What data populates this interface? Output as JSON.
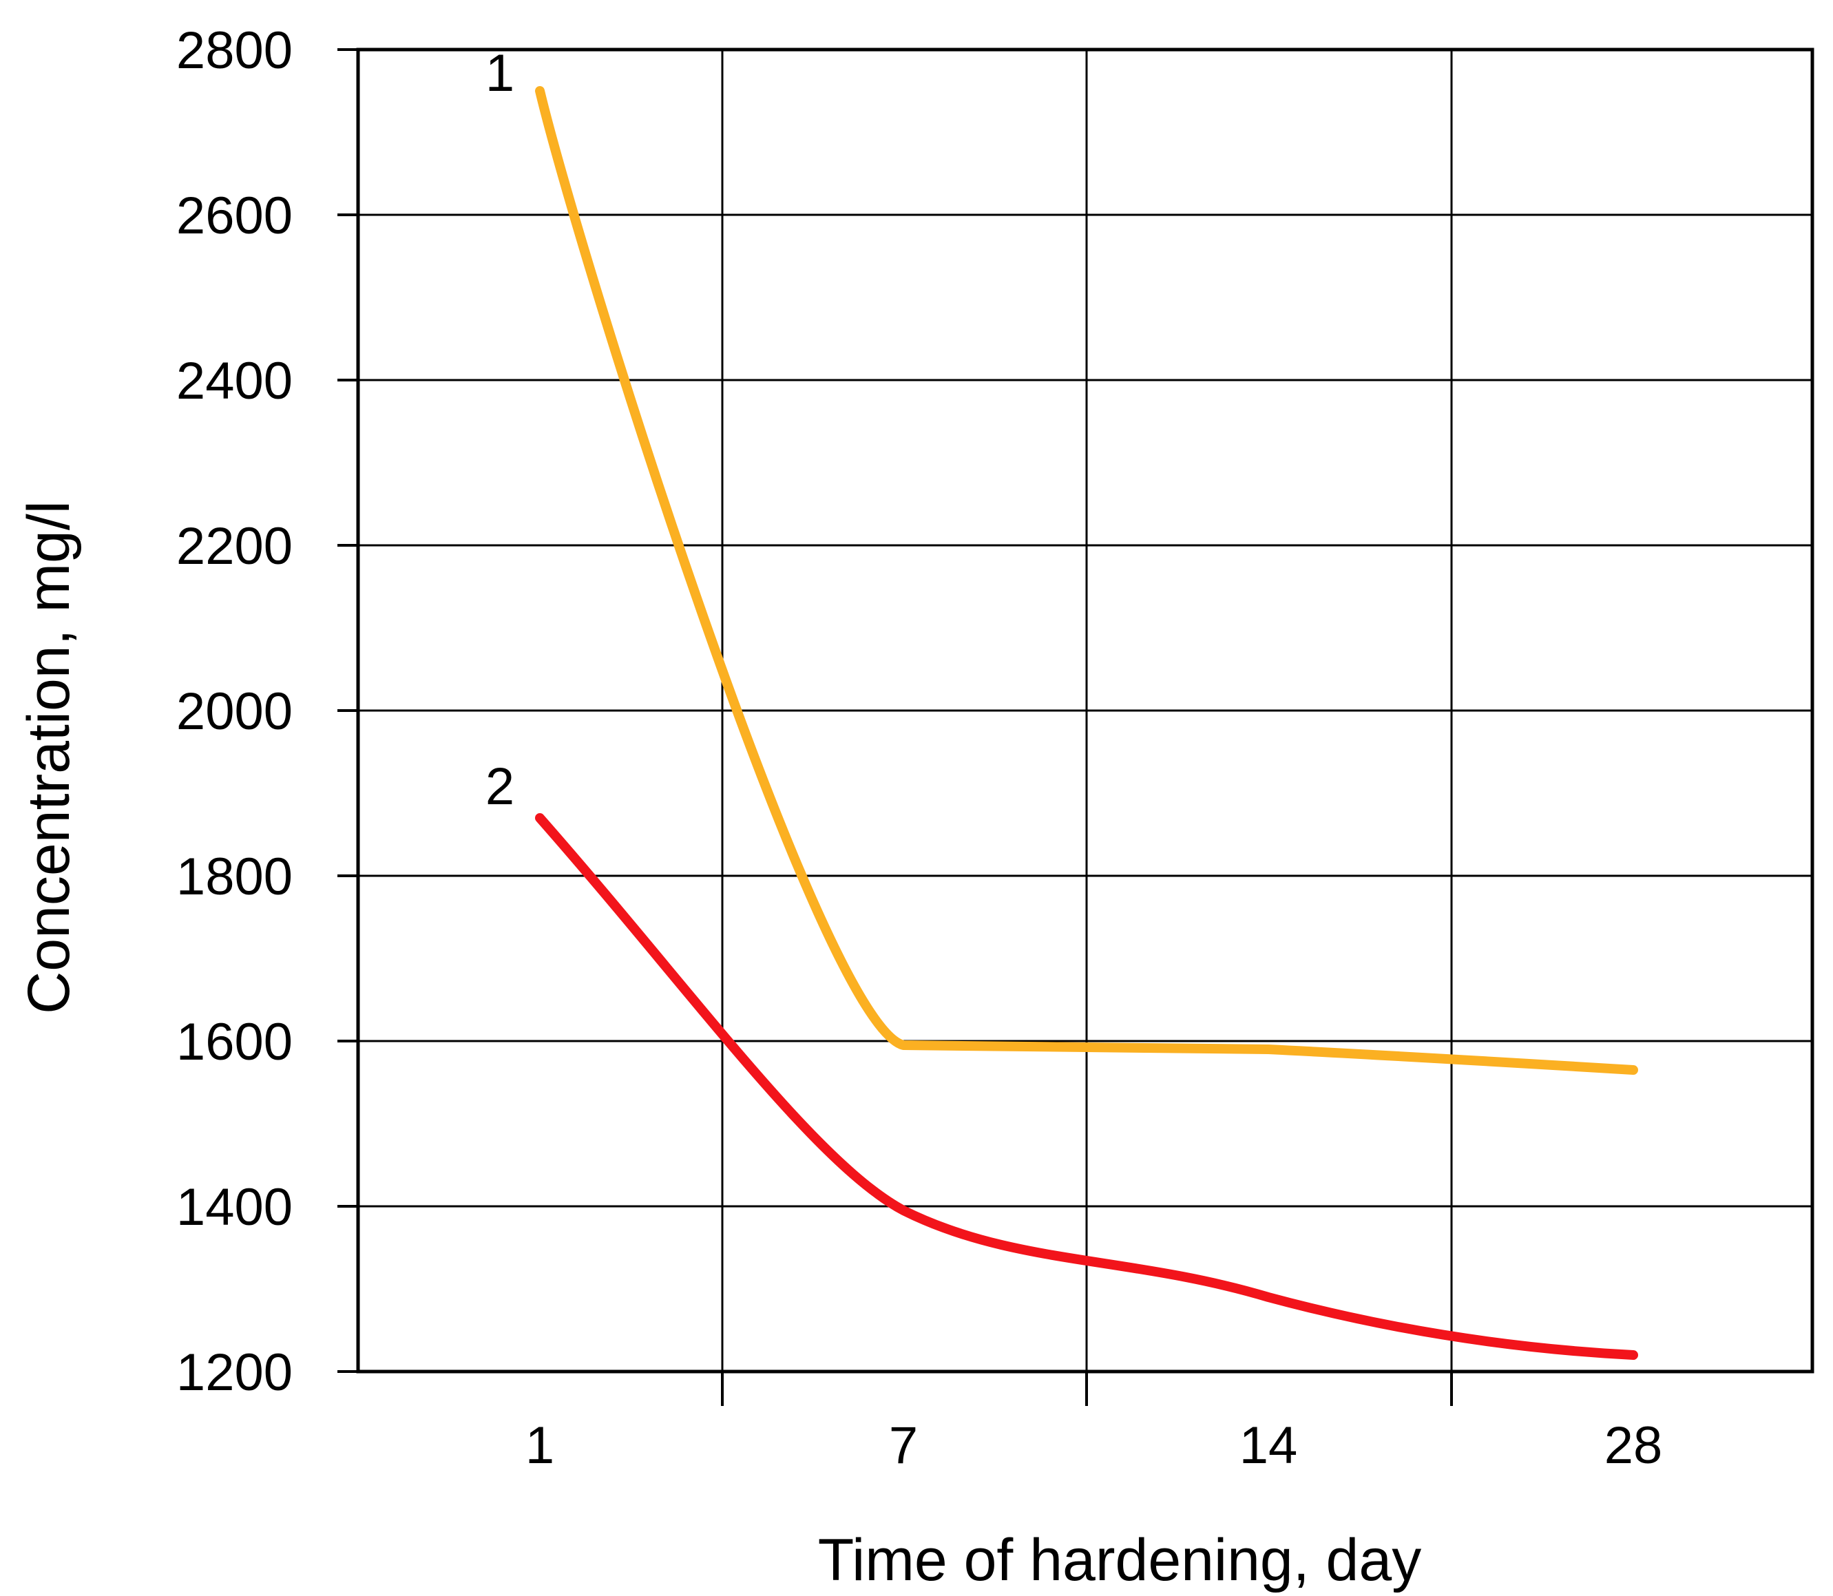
{
  "chart_data": {
    "type": "line",
    "title": "",
    "xlabel": "Time of hardening, day",
    "ylabel": "Concentration, mg/l",
    "x_tick_labels": [
      "1",
      "7",
      "14",
      "28"
    ],
    "y_ticks": [
      1200,
      1400,
      1600,
      1800,
      2000,
      2200,
      2400,
      2600,
      2800
    ],
    "ylim": [
      1200,
      2800
    ],
    "grid": true,
    "legend": "none",
    "series": [
      {
        "label": "1",
        "color": "#FBB022",
        "x": [
          "1",
          "7",
          "14",
          "28"
        ],
        "values": [
          2750,
          1595,
          1590,
          1565
        ]
      },
      {
        "label": "2",
        "color": "#F2141B",
        "x": [
          "1",
          "7",
          "14",
          "28"
        ],
        "values": [
          1870,
          1395,
          1290,
          1220
        ]
      }
    ]
  }
}
